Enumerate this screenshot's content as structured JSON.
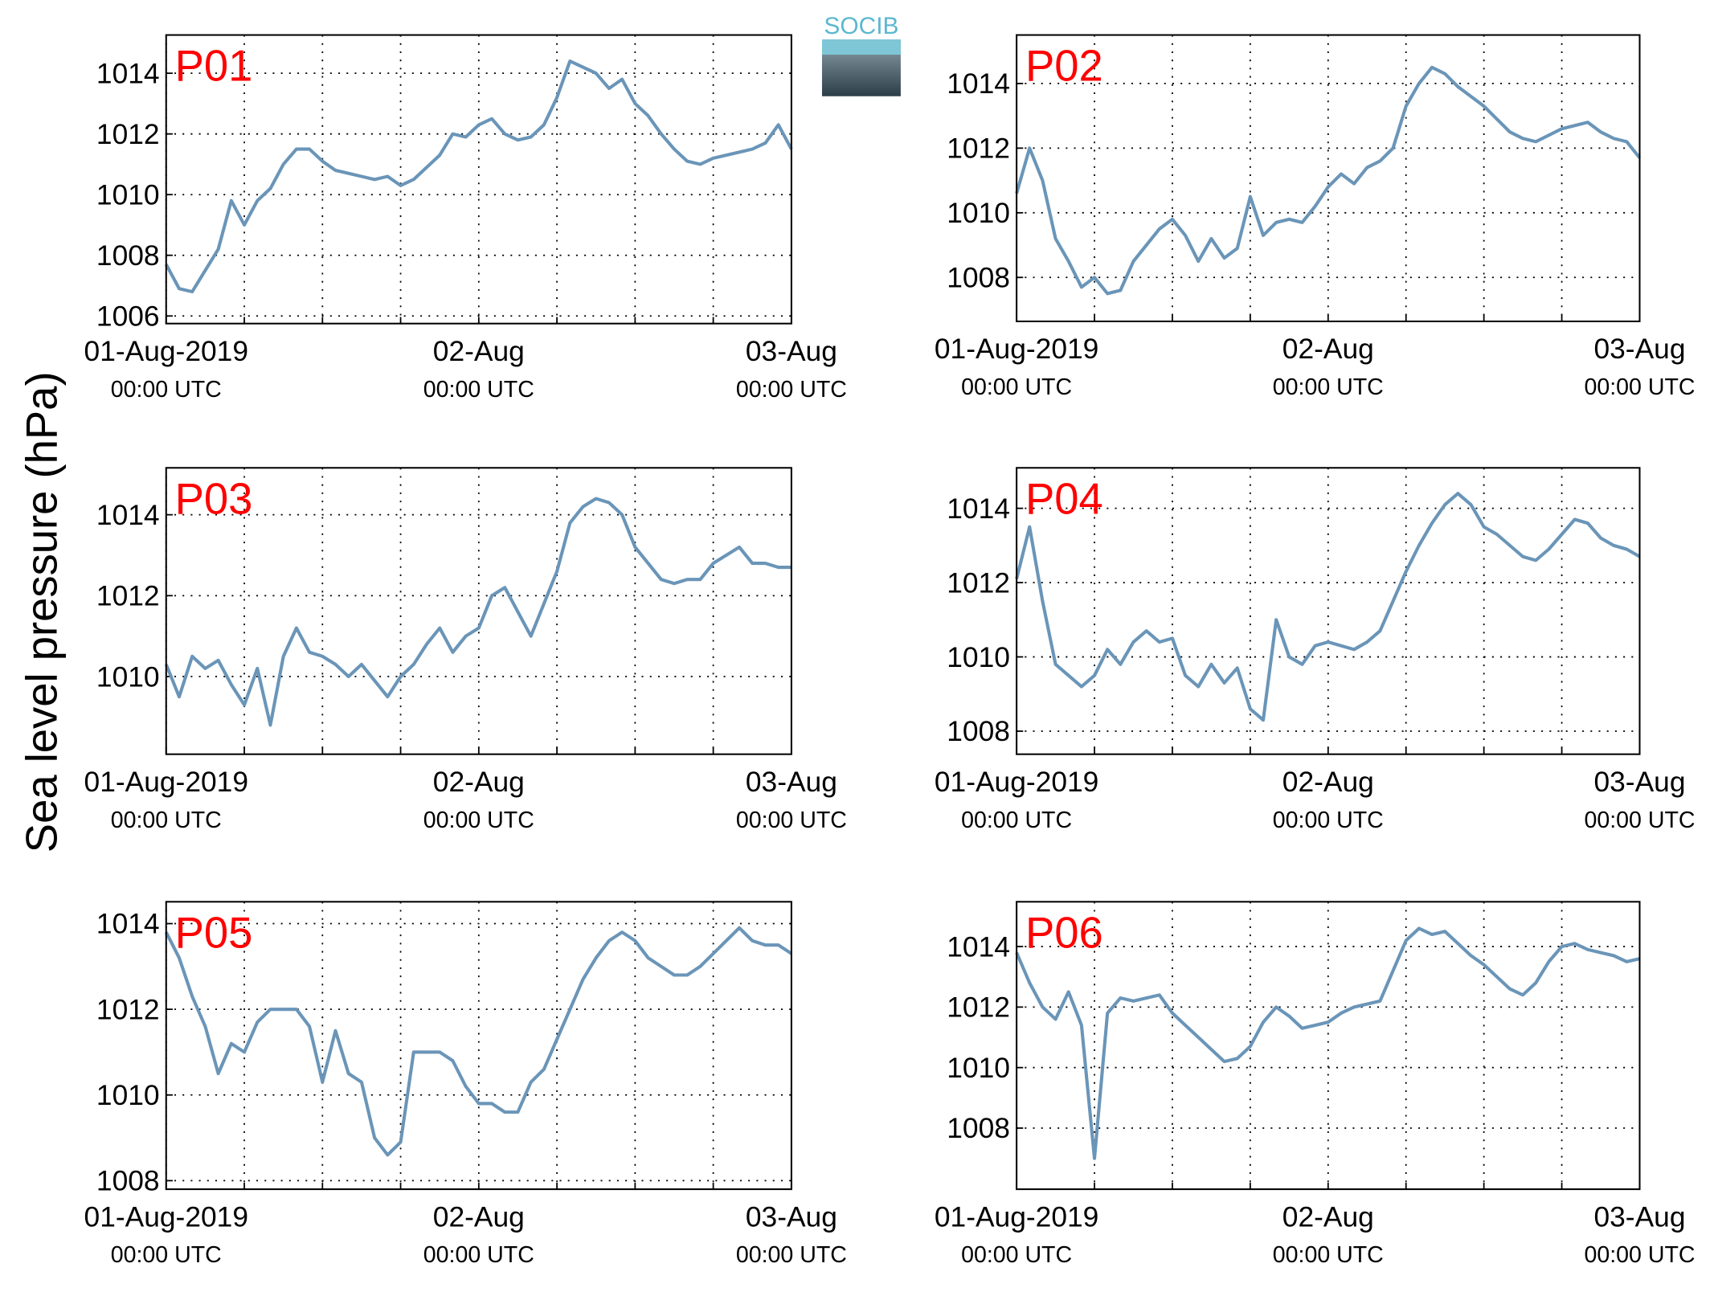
{
  "logo": "SOCIB",
  "ylabel": "Sea level pressure (hPa)",
  "chart_data": [
    {
      "type": "line",
      "title": "P01",
      "color": "#6a95b8",
      "xlim": [
        0,
        48
      ],
      "ylim": [
        1005.75,
        1015.26
      ],
      "yticks": [
        1006,
        1008,
        1010,
        1012,
        1014
      ],
      "xticks": [
        {
          "value": 0,
          "label": "01-Aug-2019",
          "sublabel": "00:00 UTC"
        },
        {
          "value": 6,
          "label": null
        },
        {
          "value": 12,
          "label": null
        },
        {
          "value": 18,
          "label": null
        },
        {
          "value": 24,
          "label": "02-Aug",
          "sublabel": "00:00 UTC"
        },
        {
          "value": 30,
          "label": null
        },
        {
          "value": 36,
          "label": null
        },
        {
          "value": 42,
          "label": null
        },
        {
          "value": 48,
          "label": "03-Aug",
          "sublabel": "00:00 UTC"
        }
      ],
      "x": [
        0,
        1,
        2,
        3,
        4,
        5,
        6,
        7,
        8,
        9,
        10,
        11,
        12,
        13,
        14,
        15,
        16,
        17,
        18,
        19,
        20,
        21,
        22,
        23,
        24,
        25,
        26,
        27,
        28,
        29,
        30,
        31,
        32,
        33,
        34,
        35,
        36,
        37,
        38,
        39,
        40,
        41,
        42,
        43,
        44,
        45,
        46,
        47,
        48
      ],
      "values": [
        1007.7,
        1006.9,
        1006.8,
        1007.5,
        1008.2,
        1009.8,
        1009.0,
        1009.8,
        1010.2,
        1011.0,
        1011.5,
        1011.5,
        1011.1,
        1010.8,
        1010.7,
        1010.6,
        1010.5,
        1010.6,
        1010.3,
        1010.5,
        1010.9,
        1011.3,
        1012.0,
        1011.9,
        1012.3,
        1012.5,
        1012.0,
        1011.8,
        1011.9,
        1012.3,
        1013.2,
        1014.4,
        1014.2,
        1014.0,
        1013.5,
        1013.8,
        1013.0,
        1012.6,
        1012.0,
        1011.5,
        1011.1,
        1011.0,
        1011.2,
        1011.3,
        1011.4,
        1011.5,
        1011.7,
        1012.3,
        1011.5
      ]
    },
    {
      "type": "line",
      "title": "P02",
      "color": "#6a95b8",
      "xlim": [
        0,
        48
      ],
      "ylim": [
        1006.64,
        1015.5
      ],
      "yticks": [
        1008,
        1010,
        1012,
        1014
      ],
      "xticks": [
        {
          "value": 0,
          "label": "01-Aug-2019",
          "sublabel": "00:00 UTC"
        },
        {
          "value": 6,
          "label": null
        },
        {
          "value": 12,
          "label": null
        },
        {
          "value": 18,
          "label": null
        },
        {
          "value": 24,
          "label": "02-Aug",
          "sublabel": "00:00 UTC"
        },
        {
          "value": 30,
          "label": null
        },
        {
          "value": 36,
          "label": null
        },
        {
          "value": 42,
          "label": null
        },
        {
          "value": 48,
          "label": "03-Aug",
          "sublabel": "00:00 UTC"
        }
      ],
      "x": [
        0,
        1,
        2,
        3,
        4,
        5,
        6,
        7,
        8,
        9,
        10,
        11,
        12,
        13,
        14,
        15,
        16,
        17,
        18,
        19,
        20,
        21,
        22,
        23,
        24,
        25,
        26,
        27,
        28,
        29,
        30,
        31,
        32,
        33,
        34,
        35,
        36,
        37,
        38,
        39,
        40,
        41,
        42,
        43,
        44,
        45,
        46,
        47,
        48
      ],
      "values": [
        1010.6,
        1012.0,
        1011.0,
        1009.2,
        1008.5,
        1007.7,
        1008.0,
        1007.5,
        1007.6,
        1008.5,
        1009.0,
        1009.5,
        1009.8,
        1009.3,
        1008.5,
        1009.2,
        1008.6,
        1008.9,
        1010.5,
        1009.3,
        1009.7,
        1009.8,
        1009.7,
        1010.2,
        1010.8,
        1011.2,
        1010.9,
        1011.4,
        1011.6,
        1012.0,
        1013.3,
        1014.0,
        1014.5,
        1014.3,
        1013.9,
        1013.6,
        1013.3,
        1012.9,
        1012.5,
        1012.3,
        1012.2,
        1012.4,
        1012.6,
        1012.7,
        1012.8,
        1012.5,
        1012.3,
        1012.2,
        1011.7
      ]
    },
    {
      "type": "line",
      "title": "P03",
      "color": "#6a95b8",
      "xlim": [
        0,
        48
      ],
      "ylim": [
        1008.08,
        1015.16
      ],
      "yticks": [
        1010,
        1012,
        1014
      ],
      "xticks": [
        {
          "value": 0,
          "label": "01-Aug-2019",
          "sublabel": "00:00 UTC"
        },
        {
          "value": 6,
          "label": null
        },
        {
          "value": 12,
          "label": null
        },
        {
          "value": 18,
          "label": null
        },
        {
          "value": 24,
          "label": "02-Aug",
          "sublabel": "00:00 UTC"
        },
        {
          "value": 30,
          "label": null
        },
        {
          "value": 36,
          "label": null
        },
        {
          "value": 42,
          "label": null
        },
        {
          "value": 48,
          "label": "03-Aug",
          "sublabel": "00:00 UTC"
        }
      ],
      "x": [
        0,
        1,
        2,
        3,
        4,
        5,
        6,
        7,
        8,
        9,
        10,
        11,
        12,
        13,
        14,
        15,
        16,
        17,
        18,
        19,
        20,
        21,
        22,
        23,
        24,
        25,
        26,
        27,
        28,
        29,
        30,
        31,
        32,
        33,
        34,
        35,
        36,
        37,
        38,
        39,
        40,
        41,
        42,
        43,
        44,
        45,
        46,
        47,
        48
      ],
      "values": [
        1010.3,
        1009.5,
        1010.5,
        1010.2,
        1010.4,
        1009.8,
        1009.3,
        1010.2,
        1008.8,
        1010.5,
        1011.2,
        1010.6,
        1010.5,
        1010.3,
        1010.0,
        1010.3,
        1009.9,
        1009.5,
        1010.0,
        1010.3,
        1010.8,
        1011.2,
        1010.6,
        1011.0,
        1011.2,
        1012.0,
        1012.2,
        1011.6,
        1011.0,
        1011.8,
        1012.6,
        1013.8,
        1014.2,
        1014.4,
        1014.3,
        1014.0,
        1013.2,
        1012.8,
        1012.4,
        1012.3,
        1012.4,
        1012.4,
        1012.8,
        1013.0,
        1013.2,
        1012.8,
        1012.8,
        1012.7,
        1012.7
      ]
    },
    {
      "type": "line",
      "title": "P04",
      "color": "#6a95b8",
      "xlim": [
        0,
        48
      ],
      "ylim": [
        1007.38,
        1015.09
      ],
      "yticks": [
        1008,
        1010,
        1012,
        1014
      ],
      "xticks": [
        {
          "value": 0,
          "label": "01-Aug-2019",
          "sublabel": "00:00 UTC"
        },
        {
          "value": 6,
          "label": null
        },
        {
          "value": 12,
          "label": null
        },
        {
          "value": 18,
          "label": null
        },
        {
          "value": 24,
          "label": "02-Aug",
          "sublabel": "00:00 UTC"
        },
        {
          "value": 30,
          "label": null
        },
        {
          "value": 36,
          "label": null
        },
        {
          "value": 42,
          "label": null
        },
        {
          "value": 48,
          "label": "03-Aug",
          "sublabel": "00:00 UTC"
        }
      ],
      "x": [
        0,
        1,
        2,
        3,
        4,
        5,
        6,
        7,
        8,
        9,
        10,
        11,
        12,
        13,
        14,
        15,
        16,
        17,
        18,
        19,
        20,
        21,
        22,
        23,
        24,
        25,
        26,
        27,
        28,
        29,
        30,
        31,
        32,
        33,
        34,
        35,
        36,
        37,
        38,
        39,
        40,
        41,
        42,
        43,
        44,
        45,
        46,
        47,
        48
      ],
      "values": [
        1012.1,
        1013.5,
        1011.5,
        1009.8,
        1009.5,
        1009.2,
        1009.5,
        1010.2,
        1009.8,
        1010.4,
        1010.7,
        1010.4,
        1010.5,
        1009.5,
        1009.2,
        1009.8,
        1009.3,
        1009.7,
        1008.6,
        1008.3,
        1011.0,
        1010.0,
        1009.8,
        1010.3,
        1010.4,
        1010.3,
        1010.2,
        1010.4,
        1010.7,
        1011.5,
        1012.3,
        1013.0,
        1013.6,
        1014.1,
        1014.4,
        1014.1,
        1013.5,
        1013.3,
        1013.0,
        1012.7,
        1012.6,
        1012.9,
        1013.3,
        1013.7,
        1013.6,
        1013.2,
        1013.0,
        1012.9,
        1012.7
      ]
    },
    {
      "type": "line",
      "title": "P05",
      "color": "#6a95b8",
      "xlim": [
        0,
        48
      ],
      "ylim": [
        1007.8,
        1014.51
      ],
      "yticks": [
        1008,
        1010,
        1012,
        1014
      ],
      "xticks": [
        {
          "value": 0,
          "label": "01-Aug-2019",
          "sublabel": "00:00 UTC"
        },
        {
          "value": 6,
          "label": null
        },
        {
          "value": 12,
          "label": null
        },
        {
          "value": 18,
          "label": null
        },
        {
          "value": 24,
          "label": "02-Aug",
          "sublabel": "00:00 UTC"
        },
        {
          "value": 30,
          "label": null
        },
        {
          "value": 36,
          "label": null
        },
        {
          "value": 42,
          "label": null
        },
        {
          "value": 48,
          "label": "03-Aug",
          "sublabel": "00:00 UTC"
        }
      ],
      "x": [
        0,
        1,
        2,
        3,
        4,
        5,
        6,
        7,
        8,
        9,
        10,
        11,
        12,
        13,
        14,
        15,
        16,
        17,
        18,
        19,
        20,
        21,
        22,
        23,
        24,
        25,
        26,
        27,
        28,
        29,
        30,
        31,
        32,
        33,
        34,
        35,
        36,
        37,
        38,
        39,
        40,
        41,
        42,
        43,
        44,
        45,
        46,
        47,
        48
      ],
      "values": [
        1013.8,
        1013.2,
        1012.3,
        1011.6,
        1010.5,
        1011.2,
        1011.0,
        1011.7,
        1012.0,
        1012.0,
        1012.0,
        1011.6,
        1010.3,
        1011.5,
        1010.5,
        1010.3,
        1009.0,
        1008.6,
        1008.9,
        1011.0,
        1011.0,
        1011.0,
        1010.8,
        1010.2,
        1009.8,
        1009.8,
        1009.6,
        1009.6,
        1010.3,
        1010.6,
        1011.3,
        1012.0,
        1012.7,
        1013.2,
        1013.6,
        1013.8,
        1013.6,
        1013.2,
        1013.0,
        1012.8,
        1012.8,
        1013.0,
        1013.3,
        1013.6,
        1013.9,
        1013.6,
        1013.5,
        1013.5,
        1013.3
      ]
    },
    {
      "type": "line",
      "title": "P06",
      "color": "#6a95b8",
      "xlim": [
        0,
        48
      ],
      "ylim": [
        1005.98,
        1015.48
      ],
      "yticks": [
        1008,
        1010,
        1012,
        1014
      ],
      "xticks": [
        {
          "value": 0,
          "label": "01-Aug-2019",
          "sublabel": "00:00 UTC"
        },
        {
          "value": 6,
          "label": null
        },
        {
          "value": 12,
          "label": null
        },
        {
          "value": 18,
          "label": null
        },
        {
          "value": 24,
          "label": "02-Aug",
          "sublabel": "00:00 UTC"
        },
        {
          "value": 30,
          "label": null
        },
        {
          "value": 36,
          "label": null
        },
        {
          "value": 42,
          "label": null
        },
        {
          "value": 48,
          "label": "03-Aug",
          "sublabel": "00:00 UTC"
        }
      ],
      "x": [
        0,
        1,
        2,
        3,
        4,
        5,
        6,
        7,
        8,
        9,
        10,
        11,
        12,
        13,
        14,
        15,
        16,
        17,
        18,
        19,
        20,
        21,
        22,
        23,
        24,
        25,
        26,
        27,
        28,
        29,
        30,
        31,
        32,
        33,
        34,
        35,
        36,
        37,
        38,
        39,
        40,
        41,
        42,
        43,
        44,
        45,
        46,
        47,
        48
      ],
      "values": [
        1013.8,
        1012.8,
        1012.0,
        1011.6,
        1012.5,
        1011.4,
        1007.0,
        1011.8,
        1012.3,
        1012.2,
        1012.3,
        1012.4,
        1011.8,
        1011.4,
        1011.0,
        1010.6,
        1010.2,
        1010.3,
        1010.7,
        1011.5,
        1012.0,
        1011.7,
        1011.3,
        1011.4,
        1011.5,
        1011.8,
        1012.0,
        1012.1,
        1012.2,
        1013.2,
        1014.2,
        1014.6,
        1014.4,
        1014.5,
        1014.1,
        1013.7,
        1013.4,
        1013.0,
        1012.6,
        1012.4,
        1012.8,
        1013.5,
        1014.0,
        1014.1,
        1013.9,
        1013.8,
        1013.7,
        1013.5,
        1013.6
      ]
    }
  ]
}
